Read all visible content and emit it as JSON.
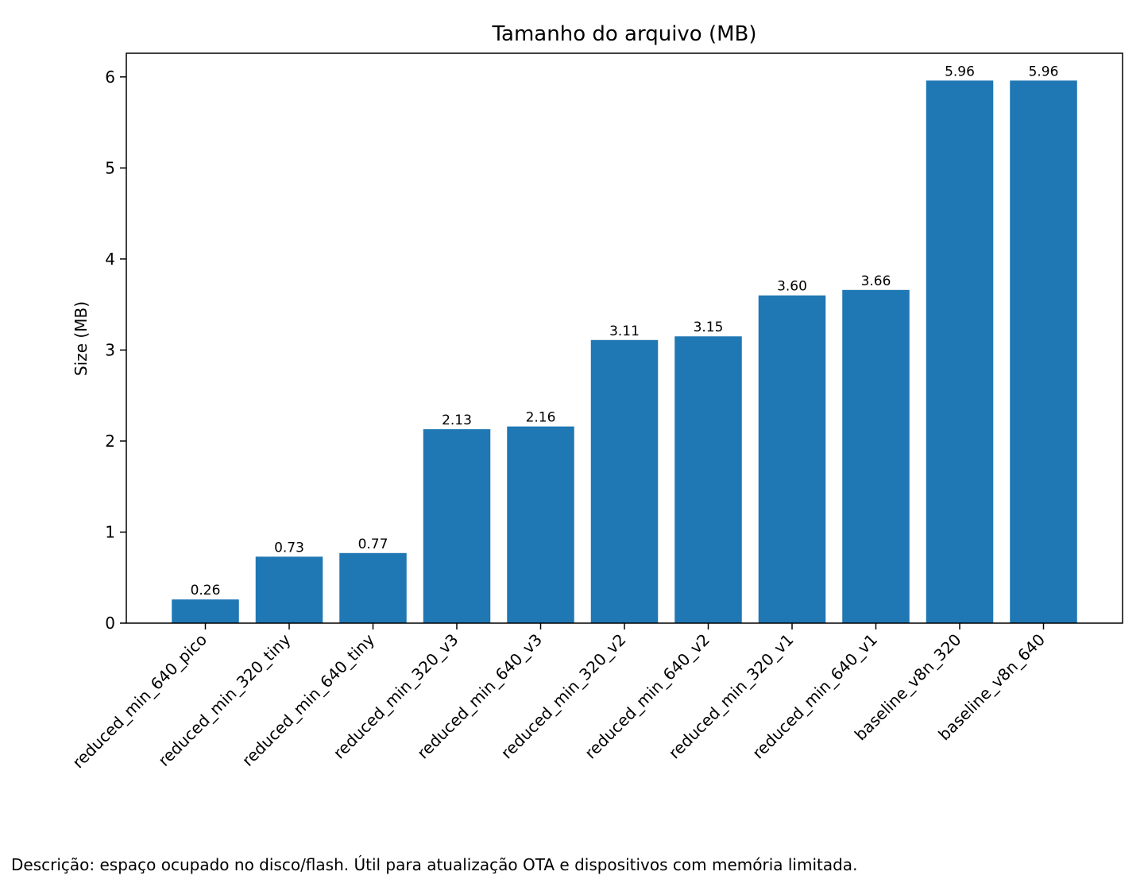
{
  "chart_data": {
    "type": "bar",
    "title": "Tamanho do arquivo (MB)",
    "xlabel": "",
    "ylabel": "Size (MB)",
    "ylim": [
      0,
      6.26
    ],
    "yticks": [
      "0",
      "1",
      "2",
      "3",
      "4",
      "5",
      "6"
    ],
    "grid": false,
    "bar_color": "#1f77b4",
    "categories": [
      "reduced_min_640_pico",
      "reduced_min_320_tiny",
      "reduced_min_640_tiny",
      "reduced_min_320_v3",
      "reduced_min_640_v3",
      "reduced_min_320_v2",
      "reduced_min_640_v2",
      "reduced_min_320_v1",
      "reduced_min_640_v1",
      "baseline_v8n_320",
      "baseline_v8n_640"
    ],
    "values": [
      0.26,
      0.73,
      0.77,
      2.13,
      2.16,
      3.11,
      3.15,
      3.6,
      3.66,
      5.96,
      5.96
    ],
    "value_labels": [
      "0.26",
      "0.73",
      "0.77",
      "2.13",
      "2.16",
      "3.11",
      "3.15",
      "3.60",
      "3.66",
      "5.96",
      "5.96"
    ]
  },
  "caption": "Descrição: espaço ocupado no disco/flash. Útil para atualização OTA e dispositivos com memória limitada."
}
